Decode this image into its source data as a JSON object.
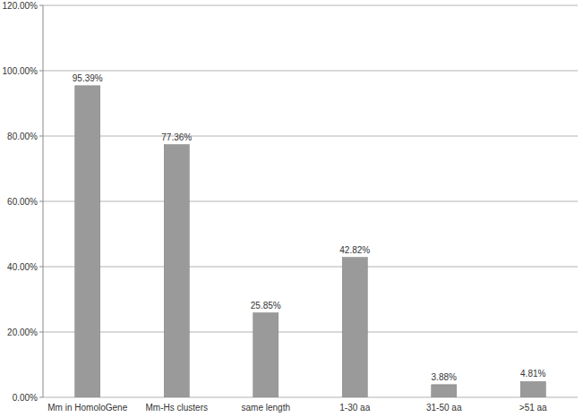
{
  "chart_data": {
    "type": "bar",
    "categories": [
      "Mm in HomoloGene",
      "Mm-Hs clusters",
      "same length",
      "1-30 aa",
      "31-50 aa",
      ">51 aa"
    ],
    "values": [
      95.39,
      77.36,
      25.85,
      42.82,
      3.88,
      4.81
    ],
    "value_labels": [
      "95.39%",
      "77.36%",
      "25.85%",
      "42.82%",
      "3.88%",
      "4.81%"
    ],
    "color": "#9a9a9a",
    "ylim": [
      0,
      120
    ],
    "yticks": [
      {
        "value": 0,
        "label": "0.00%"
      },
      {
        "value": 20,
        "label": "20.00%"
      },
      {
        "value": 40,
        "label": "40.00%"
      },
      {
        "value": 60,
        "label": "60.00%"
      },
      {
        "value": 80,
        "label": "80.00%"
      },
      {
        "value": 100,
        "label": "100.00%"
      },
      {
        "value": 120,
        "label": "120.00%"
      }
    ],
    "grid": true,
    "data_labels": true
  }
}
